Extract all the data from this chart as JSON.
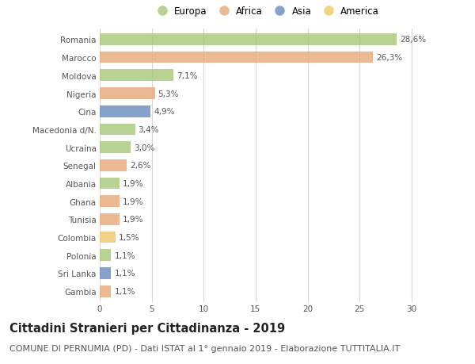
{
  "categories": [
    "Romania",
    "Marocco",
    "Moldova",
    "Nigeria",
    "Cina",
    "Macedonia d/N.",
    "Ucraina",
    "Senegal",
    "Albania",
    "Ghana",
    "Tunisia",
    "Colombia",
    "Polonia",
    "Sri Lanka",
    "Gambia"
  ],
  "values": [
    28.6,
    26.3,
    7.1,
    5.3,
    4.9,
    3.4,
    3.0,
    2.6,
    1.9,
    1.9,
    1.9,
    1.5,
    1.1,
    1.1,
    1.1
  ],
  "labels": [
    "28,6%",
    "26,3%",
    "7,1%",
    "5,3%",
    "4,9%",
    "3,4%",
    "3,0%",
    "2,6%",
    "1,9%",
    "1,9%",
    "1,9%",
    "1,5%",
    "1,1%",
    "1,1%",
    "1,1%"
  ],
  "continents": [
    "Europa",
    "Africa",
    "Europa",
    "Africa",
    "Asia",
    "Europa",
    "Europa",
    "Africa",
    "Europa",
    "Africa",
    "Africa",
    "America",
    "Europa",
    "Asia",
    "Africa"
  ],
  "continent_colors": {
    "Europa": "#a8c87a",
    "Africa": "#e8aa7a",
    "Asia": "#6b8cbf",
    "America": "#f0c96b"
  },
  "legend_order": [
    "Europa",
    "Africa",
    "Asia",
    "America"
  ],
  "title": "Cittadini Stranieri per Cittadinanza - 2019",
  "subtitle": "COMUNE DI PERNUMIA (PD) - Dati ISTAT al 1° gennaio 2019 - Elaborazione TUTTITALIA.IT",
  "xlim": [
    0,
    32
  ],
  "xticks": [
    0,
    5,
    10,
    15,
    20,
    25,
    30
  ],
  "background_color": "#ffffff",
  "grid_color": "#d8d8d8",
  "bar_alpha": 0.82,
  "title_fontsize": 10.5,
  "subtitle_fontsize": 8,
  "label_fontsize": 7.5,
  "tick_fontsize": 7.5,
  "legend_fontsize": 8.5
}
